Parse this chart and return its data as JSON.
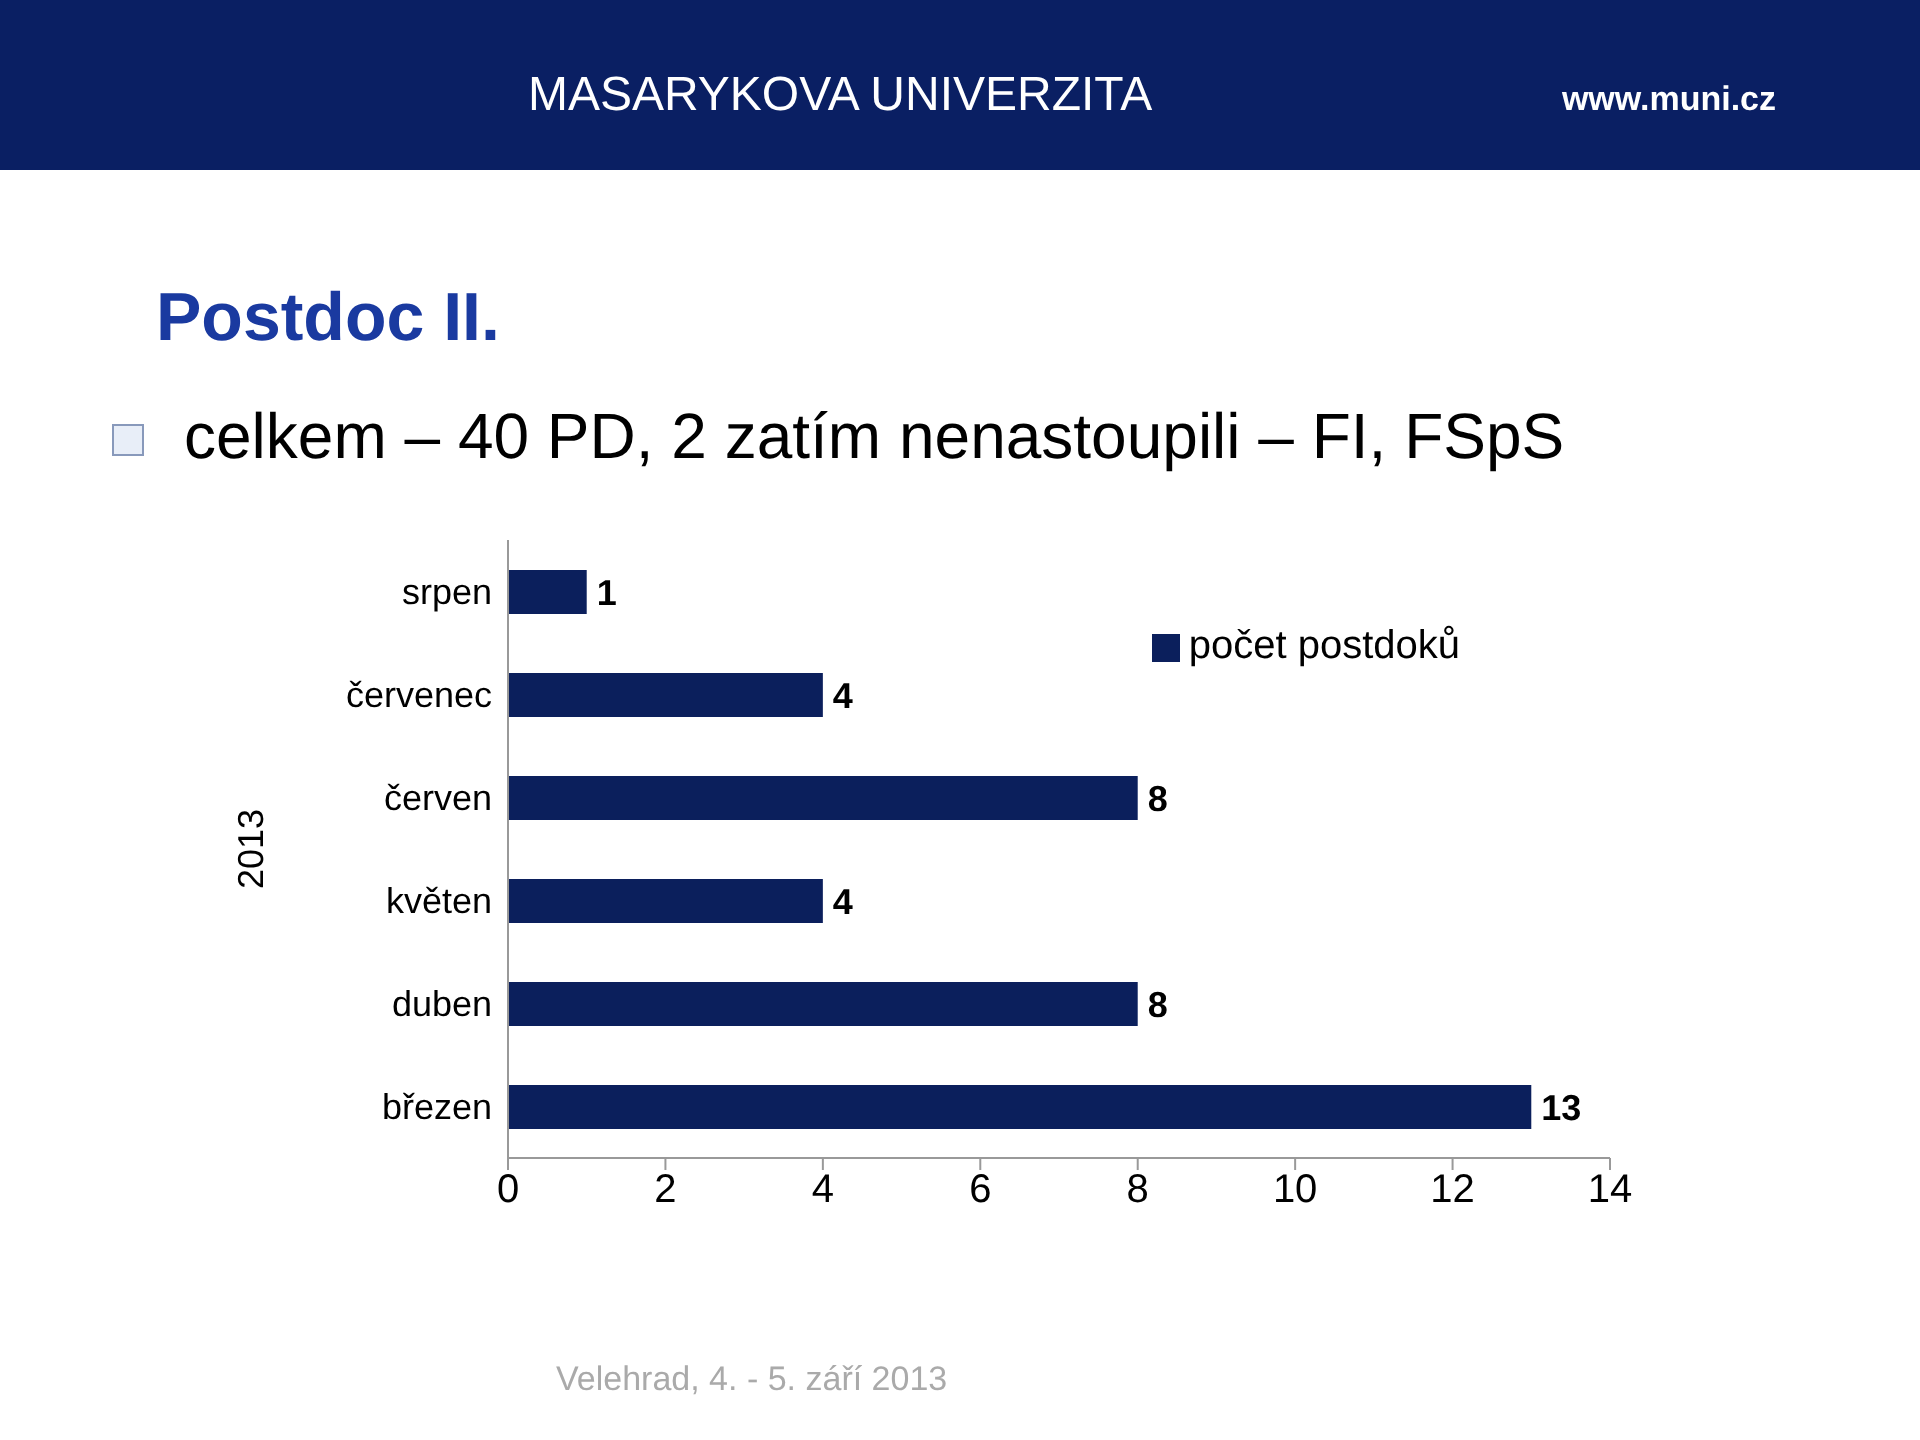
{
  "chart_data": {
    "type": "bar",
    "orientation": "horizontal",
    "title": "Postdoc II.",
    "subtitle": "celkem – 40 PD, 2 zatím nenastoupili – FI, FSpS",
    "ylabel": "2013",
    "annotations": [
      "MASARYKOVA UNIVERZITA",
      "www.muni.cz",
      "Velehrad, 4. - 5. září 2013"
    ],
    "categories": [
      "srpen",
      "červenec",
      "červen",
      "květen",
      "duben",
      "březen"
    ],
    "series": [
      {
        "name": "počet postdoků",
        "color": "#0b1f5c",
        "values": [
          1,
          4,
          8,
          4,
          8,
          13
        ]
      }
    ],
    "xlim": [
      0,
      14
    ],
    "xticks": [
      0,
      2,
      4,
      6,
      8,
      10,
      12,
      14
    ],
    "legend": "top right",
    "data_labels": true
  }
}
